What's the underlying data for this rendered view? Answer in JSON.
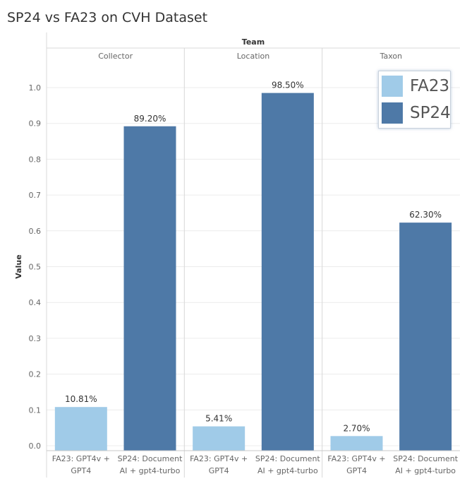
{
  "chart_data": {
    "type": "bar",
    "title": "SP24 vs FA23 on CVH Dataset",
    "column_header": "Team",
    "ylabel": "Value",
    "ylim": [
      0,
      1.0
    ],
    "yticks": [
      "0.0",
      "0.1",
      "0.2",
      "0.3",
      "0.4",
      "0.5",
      "0.6",
      "0.7",
      "0.8",
      "0.9",
      "1.0"
    ],
    "grid": true,
    "legend_placement": "top-right",
    "panels": [
      {
        "name": "Collector",
        "bars": [
          {
            "category_line1": "FA23: GPT4v +",
            "category_line2": "GPT4",
            "series": "FA23",
            "value": 0.1081,
            "label": "10.81%"
          },
          {
            "category_line1": "SP24: Document",
            "category_line2": "AI + gpt4-turbo",
            "series": "SP24",
            "value": 0.892,
            "label": "89.20%"
          }
        ]
      },
      {
        "name": "Location",
        "bars": [
          {
            "category_line1": "FA23: GPT4v +",
            "category_line2": "GPT4",
            "series": "FA23",
            "value": 0.0541,
            "label": "5.41%"
          },
          {
            "category_line1": "SP24: Document",
            "category_line2": "AI + gpt4-turbo",
            "series": "SP24",
            "value": 0.985,
            "label": "98.50%"
          }
        ]
      },
      {
        "name": "Taxon",
        "bars": [
          {
            "category_line1": "FA23: GPT4v +",
            "category_line2": "GPT4",
            "series": "FA23",
            "value": 0.027,
            "label": "2.70%"
          },
          {
            "category_line1": "SP24: Document",
            "category_line2": "AI + gpt4-turbo",
            "series": "SP24",
            "value": 0.623,
            "label": "62.30%"
          }
        ]
      }
    ],
    "legend": [
      {
        "name": "FA23",
        "color": "#a0cbe8"
      },
      {
        "name": "SP24",
        "color": "#4e79a7"
      }
    ]
  }
}
